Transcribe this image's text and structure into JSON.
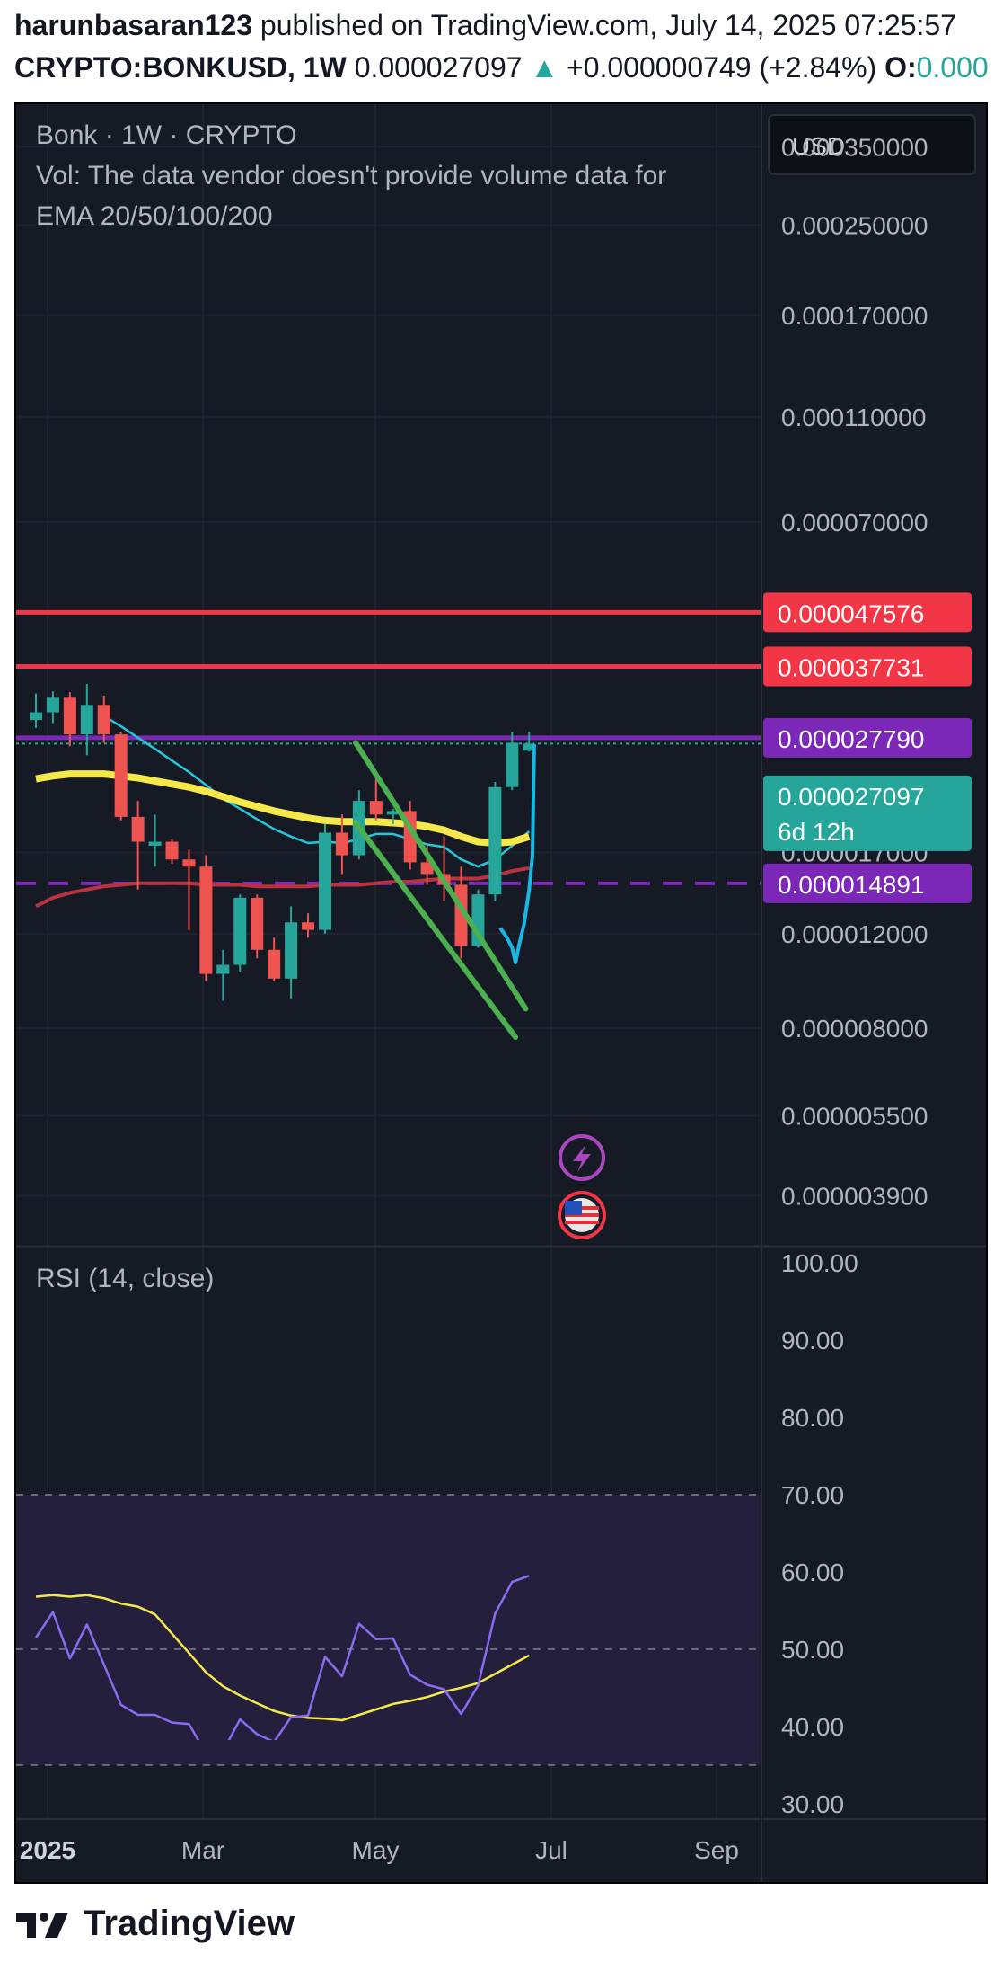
{
  "header": {
    "author": "harunbasaran123",
    "published_text": "published on TradingView.com, July 14, 2025 07:25:57",
    "symbol": "CRYPTO:BONKUSD, 1W",
    "last_price": "0.000027097",
    "arrow": "▲",
    "change": "+0.000000749 (+2.84%)",
    "open_label": "O:",
    "open_value": "0.000"
  },
  "legend": {
    "title": "Bonk · 1W · CRYPTO",
    "volume_note": "Vol: The data vendor doesn't provide volume data for",
    "indicator": "EMA 20/50/100/200"
  },
  "currency_button": "USD",
  "price_axis_labels": [
    "0.000350000",
    "0.000250000",
    "0.000170000",
    "0.000110000",
    "0.000070000",
    "0.000017000",
    "0.000012000",
    "0.000008000",
    "0.000005500",
    "0.000003900"
  ],
  "price_tags": [
    {
      "text": "0.000047576",
      "color": "#f23645"
    },
    {
      "text": "0.000037731",
      "color": "#f23645"
    },
    {
      "text": "0.000027790",
      "color": "#7b27b8"
    },
    {
      "text": "0.000027097",
      "sub": "6d 12h",
      "color": "#26a69a"
    },
    {
      "text": "0.000014891",
      "color": "#7b27b8"
    }
  ],
  "rsi": {
    "title": "RSI (14, close)",
    "axis_labels": [
      "100.00",
      "90.00",
      "80.00",
      "70.00",
      "60.00",
      "50.00",
      "40.00",
      "30.00"
    ]
  },
  "time_axis": {
    "labels": [
      "2025",
      "Mar",
      "May",
      "Jul",
      "Sep"
    ]
  },
  "footer_brand": "TradingView",
  "chart_data": {
    "type": "candlestick",
    "title": "Bonk · 1W · CRYPTO",
    "scale": "log",
    "ylim": [
      3.3e-06,
      0.00042
    ],
    "colors": {
      "up": "#26a69a",
      "down": "#ef5350"
    },
    "candles": [
      {
        "o": 3e-05,
        "h": 3.36e-05,
        "l": 2.9e-05,
        "c": 3.1e-05
      },
      {
        "o": 3.1e-05,
        "h": 3.39e-05,
        "l": 2.96e-05,
        "c": 3.3e-05
      },
      {
        "o": 3.3e-05,
        "h": 3.38e-05,
        "l": 2.68e-05,
        "c": 2.82e-05
      },
      {
        "o": 2.82e-05,
        "h": 3.5e-05,
        "l": 2.58e-05,
        "c": 3.2e-05
      },
      {
        "o": 3.2e-05,
        "h": 3.33e-05,
        "l": 2.72e-05,
        "c": 2.82e-05
      },
      {
        "o": 2.82e-05,
        "h": 2.85e-05,
        "l": 1.95e-05,
        "c": 1.98e-05
      },
      {
        "o": 1.98e-05,
        "h": 2.12e-05,
        "l": 1.45e-05,
        "c": 1.78e-05
      },
      {
        "o": 1.75e-05,
        "h": 2e-05,
        "l": 1.6e-05,
        "c": 1.78e-05
      },
      {
        "o": 1.78e-05,
        "h": 1.8e-05,
        "l": 1.62e-05,
        "c": 1.65e-05
      },
      {
        "o": 1.65e-05,
        "h": 1.72e-05,
        "l": 1.22e-05,
        "c": 1.6e-05
      },
      {
        "o": 1.6e-05,
        "h": 1.68e-05,
        "l": 9.8e-06,
        "c": 1.01e-05
      },
      {
        "o": 1.01e-05,
        "h": 1.12e-05,
        "l": 9e-06,
        "c": 1.05e-05
      },
      {
        "o": 1.05e-05,
        "h": 1.42e-05,
        "l": 1.02e-05,
        "c": 1.4e-05
      },
      {
        "o": 1.4e-05,
        "h": 1.42e-05,
        "l": 1.08e-05,
        "c": 1.12e-05
      },
      {
        "o": 1.12e-05,
        "h": 1.18e-05,
        "l": 9.8e-06,
        "c": 9.9e-06
      },
      {
        "o": 9.9e-06,
        "h": 1.35e-05,
        "l": 9.1e-06,
        "c": 1.26e-05
      },
      {
        "o": 1.26e-05,
        "h": 1.31e-05,
        "l": 1.18e-05,
        "c": 1.22e-05
      },
      {
        "o": 1.22e-05,
        "h": 1.92e-05,
        "l": 1.2e-05,
        "c": 1.85e-05
      },
      {
        "o": 1.85e-05,
        "h": 2e-05,
        "l": 1.55e-05,
        "c": 1.68e-05
      },
      {
        "o": 1.68e-05,
        "h": 2.22e-05,
        "l": 1.65e-05,
        "c": 2.12e-05
      },
      {
        "o": 2.12e-05,
        "h": 2.4e-05,
        "l": 1.95e-05,
        "c": 2e-05
      },
      {
        "o": 2e-05,
        "h": 2.05e-05,
        "l": 1.92e-05,
        "c": 2.03e-05
      },
      {
        "o": 2.03e-05,
        "h": 2.12e-05,
        "l": 1.58e-05,
        "c": 1.63e-05
      },
      {
        "o": 1.63e-05,
        "h": 1.75e-05,
        "l": 1.48e-05,
        "c": 1.55e-05
      },
      {
        "o": 1.55e-05,
        "h": 1.82e-05,
        "l": 1.38e-05,
        "c": 1.48e-05
      },
      {
        "o": 1.48e-05,
        "h": 1.6e-05,
        "l": 1.08e-05,
        "c": 1.14e-05
      },
      {
        "o": 1.14e-05,
        "h": 1.45e-05,
        "l": 1.13e-05,
        "c": 1.42e-05
      },
      {
        "o": 1.42e-05,
        "h": 2.3e-05,
        "l": 1.38e-05,
        "c": 2.25e-05
      },
      {
        "o": 2.25e-05,
        "h": 2.85e-05,
        "l": 2.22e-05,
        "c": 2.72e-05
      },
      {
        "o": 2.63e-05,
        "h": 2.85e-05,
        "l": 2.62e-05,
        "c": 2.71e-05
      }
    ],
    "ema": [
      {
        "name": "EMA 20",
        "color": "#26c6da",
        "values": [
          null,
          null,
          null,
          null,
          3.05e-05,
          2.92e-05,
          2.78e-05,
          2.65e-05,
          2.52e-05,
          2.4e-05,
          2.27e-05,
          2.14e-05,
          2.05e-05,
          1.96e-05,
          1.88e-05,
          1.82e-05,
          1.77e-05,
          1.78e-05,
          1.77e-05,
          1.8e-05,
          1.84e-05,
          1.84e-05,
          1.8e-05,
          1.76e-05,
          1.74e-05,
          1.65e-05,
          1.6e-05,
          1.65e-05,
          1.75e-05,
          1.86e-05
        ]
      },
      {
        "name": "EMA 50",
        "color": "#f5e84a",
        "values": [
          2.33e-05,
          2.36e-05,
          2.38e-05,
          2.38e-05,
          2.38e-05,
          2.36e-05,
          2.34e-05,
          2.31e-05,
          2.28e-05,
          2.25e-05,
          2.21e-05,
          2.16e-05,
          2.11e-05,
          2.07e-05,
          2.03e-05,
          2e-05,
          1.97e-05,
          1.95e-05,
          1.94e-05,
          1.94e-05,
          1.94e-05,
          1.93e-05,
          1.92e-05,
          1.9e-05,
          1.87e-05,
          1.82e-05,
          1.78e-05,
          1.77e-05,
          1.78e-05,
          1.82e-05
        ]
      },
      {
        "name": "EMA 200",
        "color": "#b83240",
        "values": [
          1.35e-05,
          1.4e-05,
          1.43e-05,
          1.45e-05,
          1.47e-05,
          1.48e-05,
          1.49e-05,
          1.49e-05,
          1.49e-05,
          1.49e-05,
          1.48e-05,
          1.48e-05,
          1.48e-05,
          1.47e-05,
          1.47e-05,
          1.47e-05,
          1.47e-05,
          1.48e-05,
          1.48e-05,
          1.48e-05,
          1.49e-05,
          1.5e-05,
          1.5e-05,
          1.51e-05,
          1.52e-05,
          1.52e-05,
          1.52e-05,
          1.54e-05,
          1.57e-05,
          1.59e-05
        ]
      }
    ],
    "horizontal_lines": [
      {
        "price": 4.7576e-05,
        "color": "#f23645",
        "style": "solid"
      },
      {
        "price": 3.7731e-05,
        "color": "#f23645",
        "style": "solid"
      },
      {
        "price": 2.779e-05,
        "color": "#7b27b8",
        "style": "solid"
      },
      {
        "price": 1.4891e-05,
        "color": "#7b27b8",
        "style": "dashed"
      }
    ],
    "drawings": [
      {
        "type": "trendline",
        "color": "#4caf50",
        "from": {
          "i": 18.8,
          "p": 2.72e-05
        },
        "to": {
          "i": 28.8,
          "p": 8.7e-06
        }
      },
      {
        "type": "trendline",
        "color": "#4caf50",
        "from": {
          "i": 18.8,
          "p": 1.93e-05
        },
        "to": {
          "i": 28.2,
          "p": 7.7e-06
        }
      },
      {
        "type": "projection",
        "color": "#18b8e6",
        "points": [
          {
            "i": 27.3,
            "p": 1.23e-05
          },
          {
            "i": 27.7,
            "p": 1.18e-05
          },
          {
            "i": 28.0,
            "p": 1.13e-05
          },
          {
            "i": 28.2,
            "p": 1.06e-05
          },
          {
            "i": 28.4,
            "p": 1.14e-05
          },
          {
            "i": 28.7,
            "p": 1.25e-05
          },
          {
            "i": 29.0,
            "p": 1.45e-05
          },
          {
            "i": 29.2,
            "p": 1.68e-05
          },
          {
            "i": 29.3,
            "p": 2.7e-05
          }
        ]
      }
    ],
    "rsi": {
      "ylim": [
        28,
        102
      ],
      "bands": [
        70,
        50,
        35
      ],
      "rsi_values": [
        51.5,
        54.8,
        48.8,
        53.2,
        48.0,
        42.8,
        41.5,
        41.5,
        40.5,
        40.3,
        36.5,
        36.8,
        40.9,
        39.0,
        38.0,
        41.2,
        41.4,
        49.0,
        46.5,
        53.3,
        51.3,
        51.4,
        46.7,
        45.4,
        44.8,
        41.6,
        45.3,
        54.6,
        58.7,
        59.5
      ],
      "ma_values": [
        56.8,
        57.0,
        56.8,
        57.0,
        56.6,
        55.9,
        55.5,
        54.5,
        52.0,
        49.5,
        47.0,
        45.2,
        44.0,
        43.0,
        42.0,
        41.4,
        41.1,
        41.0,
        40.8,
        41.5,
        42.2,
        42.9,
        43.3,
        43.8,
        44.5,
        45.0,
        45.6,
        46.8,
        48.0,
        49.2
      ],
      "rsi_color": "#8a6cf0",
      "ma_color": "#f5e84a"
    }
  }
}
